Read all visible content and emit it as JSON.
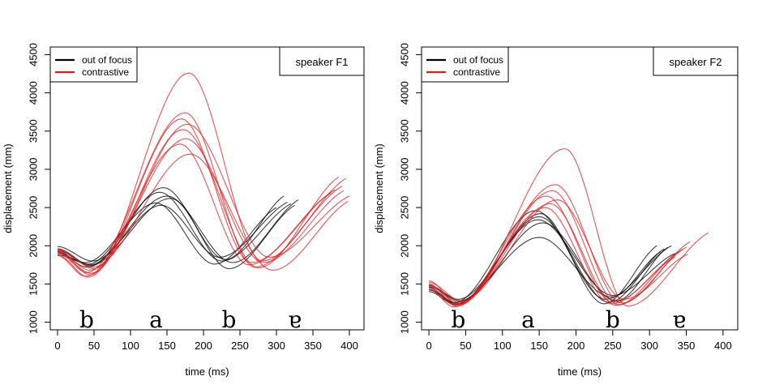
{
  "chart_data": [
    {
      "type": "line",
      "panel": "speaker F1",
      "xlabel": "time (ms)",
      "ylabel": "displacement (mm)",
      "xlim": [
        -10,
        420
      ],
      "ylim": [
        900,
        4600
      ],
      "xticks": [
        0,
        50,
        100,
        150,
        200,
        250,
        300,
        350,
        400
      ],
      "yticks": [
        1000,
        1500,
        2000,
        2500,
        3000,
        3500,
        4000,
        4500
      ],
      "grid": false,
      "legend": {
        "position": "top-left",
        "entries": [
          {
            "label": "out of focus",
            "color": "#000000"
          },
          {
            "label": "contrastive",
            "color": "#e41a1c"
          }
        ]
      },
      "speaker_label": "speaker F1",
      "segments": [
        {
          "text": "b",
          "x": 40
        },
        {
          "text": "a",
          "x": 135
        },
        {
          "text": "b",
          "x": 235
        },
        {
          "text": "ɐ",
          "x": 325
        }
      ],
      "series": [
        {
          "group": "out of focus",
          "color": "#000000",
          "y0": 1900,
          "min1": [
            42,
            1760
          ],
          "max": [
            140,
            2700
          ],
          "min2": [
            225,
            1800
          ],
          "end": [
            320,
            2550
          ]
        },
        {
          "group": "out of focus",
          "color": "#000000",
          "y0": 1960,
          "min1": [
            45,
            1750
          ],
          "max": [
            145,
            2760
          ],
          "min2": [
            230,
            1820
          ],
          "end": [
            310,
            2650
          ]
        },
        {
          "group": "out of focus",
          "color": "#000000",
          "y0": 1920,
          "min1": [
            40,
            1720
          ],
          "max": [
            150,
            2650
          ],
          "min2": [
            240,
            1780
          ],
          "end": [
            330,
            2600
          ]
        },
        {
          "group": "out of focus",
          "color": "#000000",
          "y0": 1880,
          "min1": [
            38,
            1780
          ],
          "max": [
            135,
            2560
          ],
          "min2": [
            215,
            1760
          ],
          "end": [
            300,
            2500
          ]
        },
        {
          "group": "out of focus",
          "color": "#000000",
          "y0": 1990,
          "min1": [
            48,
            1800
          ],
          "max": [
            142,
            2530
          ],
          "min2": [
            222,
            1850
          ],
          "end": [
            315,
            2570
          ]
        },
        {
          "group": "out of focus",
          "color": "#000000",
          "y0": 1940,
          "min1": [
            44,
            1740
          ],
          "max": [
            155,
            2620
          ],
          "min2": [
            235,
            1700
          ],
          "end": [
            325,
            2530
          ]
        },
        {
          "group": "contrastive",
          "color": "#e41a1c",
          "y0": 1940,
          "min1": [
            45,
            1620
          ],
          "max": [
            180,
            4260
          ],
          "min2": [
            280,
            1800
          ],
          "end": [
            395,
            2880
          ]
        },
        {
          "group": "contrastive",
          "color": "#e41a1c",
          "y0": 1910,
          "min1": [
            40,
            1650
          ],
          "max": [
            175,
            3740
          ],
          "min2": [
            270,
            1720
          ],
          "end": [
            390,
            2780
          ]
        },
        {
          "group": "contrastive",
          "color": "#e41a1c",
          "y0": 1880,
          "min1": [
            42,
            1590
          ],
          "max": [
            170,
            3660
          ],
          "min2": [
            265,
            1780
          ],
          "end": [
            380,
            2730
          ]
        },
        {
          "group": "contrastive",
          "color": "#e41a1c",
          "y0": 1960,
          "min1": [
            50,
            1700
          ],
          "max": [
            178,
            3590
          ],
          "min2": [
            290,
            1850
          ],
          "end": [
            400,
            2650
          ]
        },
        {
          "group": "contrastive",
          "color": "#e41a1c",
          "y0": 1900,
          "min1": [
            46,
            1640
          ],
          "max": [
            172,
            3520
          ],
          "min2": [
            275,
            1710
          ],
          "end": [
            385,
            2900
          ]
        },
        {
          "group": "contrastive",
          "color": "#e41a1c",
          "y0": 1930,
          "min1": [
            44,
            1680
          ],
          "max": [
            176,
            3400
          ],
          "min2": [
            282,
            1780
          ],
          "end": [
            392,
            2720
          ]
        },
        {
          "group": "contrastive",
          "color": "#e41a1c",
          "y0": 1870,
          "min1": [
            38,
            1600
          ],
          "max": [
            168,
            3330
          ],
          "min2": [
            262,
            1750
          ],
          "end": [
            375,
            2690
          ]
        },
        {
          "group": "contrastive",
          "color": "#e41a1c",
          "y0": 1950,
          "min1": [
            48,
            1720
          ],
          "max": [
            182,
            3200
          ],
          "min2": [
            295,
            1680
          ],
          "end": [
            398,
            2580
          ]
        }
      ]
    },
    {
      "type": "line",
      "panel": "speaker F2",
      "xlabel": "time (ms)",
      "ylabel": "displacement (mm)",
      "xlim": [
        -10,
        420
      ],
      "ylim": [
        900,
        4600
      ],
      "xticks": [
        0,
        50,
        100,
        150,
        200,
        250,
        300,
        350,
        400
      ],
      "yticks": [
        1000,
        1500,
        2000,
        2500,
        3000,
        3500,
        4000,
        4500
      ],
      "grid": false,
      "legend": {
        "position": "top-left",
        "entries": [
          {
            "label": "out of focus",
            "color": "#000000"
          },
          {
            "label": "contrastive",
            "color": "#e41a1c"
          }
        ]
      },
      "speaker_label": "speaker F2",
      "segments": [
        {
          "text": "b",
          "x": 40
        },
        {
          "text": "a",
          "x": 135
        },
        {
          "text": "b",
          "x": 250
        },
        {
          "text": "ɐ",
          "x": 340
        }
      ],
      "series": [
        {
          "group": "out of focus",
          "color": "#000000",
          "y0": 1450,
          "min1": [
            35,
            1260
          ],
          "max": [
            145,
            2460
          ],
          "min2": [
            240,
            1300
          ],
          "end": [
            330,
            2000
          ]
        },
        {
          "group": "out of focus",
          "color": "#000000",
          "y0": 1420,
          "min1": [
            38,
            1240
          ],
          "max": [
            150,
            2380
          ],
          "min2": [
            245,
            1260
          ],
          "end": [
            320,
            1960
          ]
        },
        {
          "group": "out of focus",
          "color": "#000000",
          "y0": 1480,
          "min1": [
            40,
            1300
          ],
          "max": [
            148,
            2340
          ],
          "min2": [
            250,
            1350
          ],
          "end": [
            335,
            1900
          ]
        },
        {
          "group": "out of focus",
          "color": "#000000",
          "y0": 1400,
          "min1": [
            36,
            1230
          ],
          "max": [
            152,
            2420
          ],
          "min2": [
            238,
            1240
          ],
          "end": [
            310,
            2000
          ]
        },
        {
          "group": "out of focus",
          "color": "#000000",
          "y0": 1460,
          "min1": [
            42,
            1280
          ],
          "max": [
            155,
            2300
          ],
          "min2": [
            255,
            1280
          ],
          "end": [
            325,
            1980
          ]
        },
        {
          "group": "out of focus",
          "color": "#000000",
          "y0": 1430,
          "min1": [
            34,
            1250
          ],
          "max": [
            150,
            2110
          ],
          "min2": [
            248,
            1330
          ],
          "end": [
            315,
            1920
          ]
        },
        {
          "group": "contrastive",
          "color": "#e41a1c",
          "y0": 1540,
          "min1": [
            40,
            1230
          ],
          "max": [
            185,
            3270
          ],
          "min2": [
            270,
            1210
          ],
          "end": [
            380,
            2170
          ]
        },
        {
          "group": "contrastive",
          "color": "#e41a1c",
          "y0": 1500,
          "min1": [
            38,
            1210
          ],
          "max": [
            172,
            2800
          ],
          "min2": [
            262,
            1250
          ],
          "end": [
            355,
            2050
          ]
        },
        {
          "group": "contrastive",
          "color": "#e41a1c",
          "y0": 1470,
          "min1": [
            42,
            1260
          ],
          "max": [
            168,
            2720
          ],
          "min2": [
            258,
            1230
          ],
          "end": [
            350,
            1980
          ]
        },
        {
          "group": "contrastive",
          "color": "#e41a1c",
          "y0": 1450,
          "min1": [
            36,
            1220
          ],
          "max": [
            160,
            2650
          ],
          "min2": [
            250,
            1260
          ],
          "end": [
            345,
            1950
          ]
        },
        {
          "group": "contrastive",
          "color": "#e41a1c",
          "y0": 1520,
          "min1": [
            44,
            1280
          ],
          "max": [
            175,
            2600
          ],
          "min2": [
            265,
            1300
          ],
          "end": [
            352,
            1890
          ]
        },
        {
          "group": "contrastive",
          "color": "#e41a1c",
          "y0": 1490,
          "min1": [
            40,
            1240
          ],
          "max": [
            165,
            2550
          ],
          "min2": [
            255,
            1220
          ],
          "end": [
            340,
            1920
          ]
        },
        {
          "group": "contrastive",
          "color": "#e41a1c",
          "y0": 1430,
          "min1": [
            34,
            1200
          ],
          "max": [
            158,
            2500
          ],
          "min2": [
            248,
            1240
          ],
          "end": [
            335,
            1850
          ]
        }
      ]
    }
  ]
}
